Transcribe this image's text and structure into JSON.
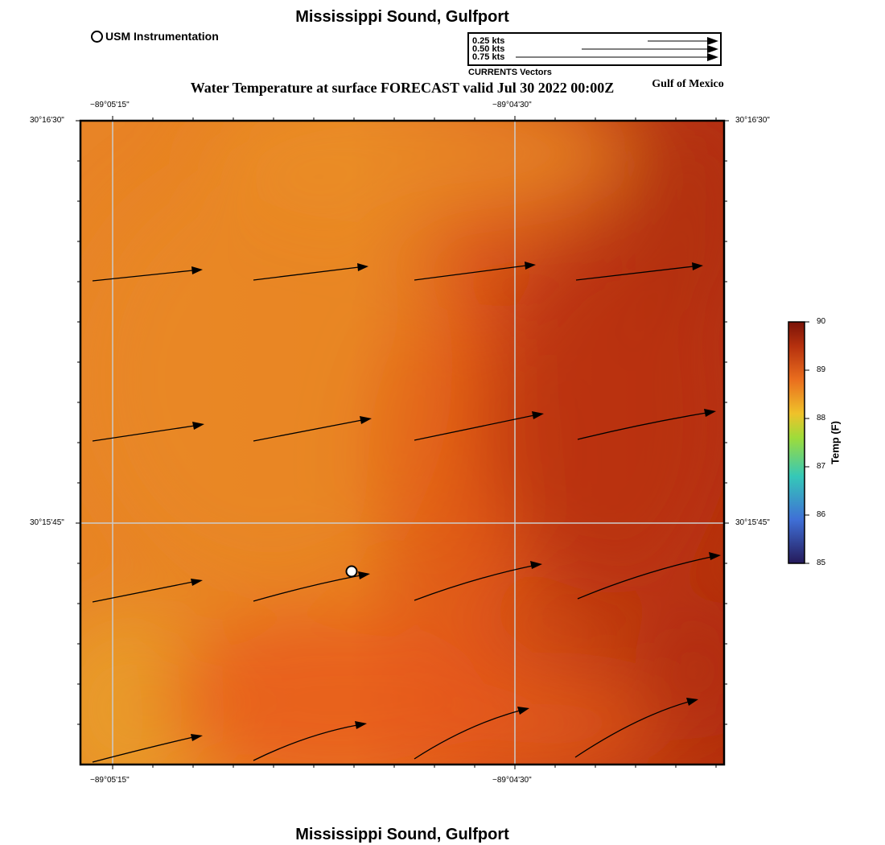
{
  "header": {
    "title": "Mississippi Sound, Gulfport",
    "usm_legend": "USM Instrumentation",
    "map_title": "Water Temperature at surface FORECAST valid Jul 30 2022 00:00Z",
    "region": "Gulf of Mexico"
  },
  "vector_legend": {
    "entries": [
      "0.25 kts",
      "0.50 kts",
      "0.75 kts"
    ],
    "caption": "CURRENTS Vectors"
  },
  "axes": {
    "lon_ticks": [
      "−89°05'15\"",
      "−89°04'30\""
    ],
    "lat_ticks": [
      "30°16'30\"",
      "30°15'45\""
    ]
  },
  "colorbar": {
    "title": "Temp (F)",
    "ticks": [
      "85",
      "86",
      "87",
      "88",
      "89",
      "90"
    ],
    "colors": [
      "#251a5a",
      "#3f6fd6",
      "#35c8b8",
      "#9edc3a",
      "#efc22a",
      "#ea6e1e",
      "#b5300e",
      "#7a1208"
    ]
  },
  "footer": {
    "title": "Mississippi Sound, Gulfport"
  }
}
